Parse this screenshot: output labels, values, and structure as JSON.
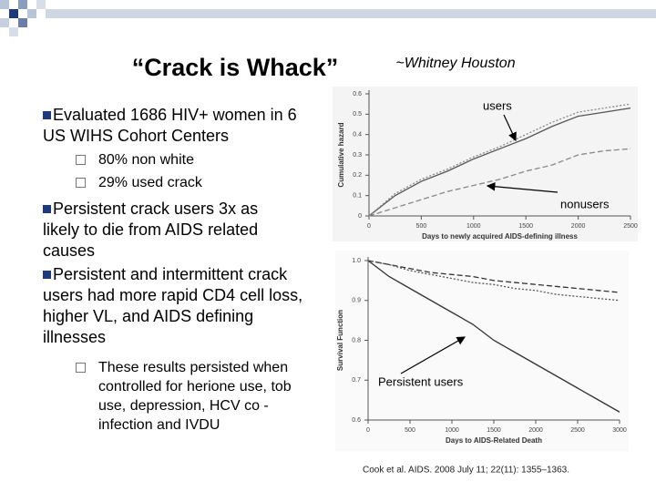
{
  "header": {
    "title": "“Crack is Whack”",
    "attribution": "~Whitney Houston"
  },
  "bullets": [
    {
      "text": "Evaluated 1686 HIV+ women in 6 US WIHS Cohort Centers",
      "subs": [
        "80% non white",
        "29% used crack"
      ]
    },
    {
      "text": "Persistent crack users 3x as likely to die from AIDS related causes",
      "subs": []
    },
    {
      "text": "Persistent and intermittent crack users had more rapid CD4 cell loss, higher VL, and AIDS defining illnesses",
      "subs": [
        "These results persisted when controlled for herione use, tob use, depression, HCV co -infection and IVDU"
      ]
    }
  ],
  "chart_data": [
    {
      "type": "line",
      "xlabel": "Days to newly acquired AIDS-defining illness",
      "ylabel": "Cumulative hazard",
      "x": [
        0,
        250,
        500,
        750,
        1000,
        1250,
        1500,
        1750,
        2000,
        2250,
        2500
      ],
      "series": [
        {
          "color": "#555555",
          "style": "solid",
          "values": [
            0,
            0.1,
            0.17,
            0.22,
            0.28,
            0.33,
            0.38,
            0.44,
            0.49,
            0.51,
            0.53
          ]
        },
        {
          "color": "#888888",
          "style": "dotted",
          "values": [
            0,
            0.11,
            0.18,
            0.23,
            0.29,
            0.34,
            0.4,
            0.46,
            0.51,
            0.53,
            0.55
          ]
        },
        {
          "color": "#888888",
          "style": "dashed",
          "values": [
            0,
            0.04,
            0.08,
            0.12,
            0.15,
            0.18,
            0.22,
            0.25,
            0.3,
            0.32,
            0.33
          ]
        }
      ],
      "xlim": [
        0,
        2500
      ],
      "xticks": [
        0,
        500,
        1000,
        1500,
        2000,
        2500
      ],
      "ylim": [
        0,
        0.6
      ],
      "yticks": [
        0,
        0.1,
        0.2,
        0.3,
        0.4,
        0.5,
        0.6
      ],
      "annotations": [
        "users",
        "nonusers"
      ]
    },
    {
      "type": "line",
      "xlabel": "Days to AIDS-Related Death",
      "ylabel": "Survival Function",
      "x": [
        0,
        250,
        500,
        750,
        1000,
        1250,
        1500,
        1750,
        2000,
        2250,
        2500,
        2750,
        3000
      ],
      "series": [
        {
          "color": "#333333",
          "style": "solid",
          "values": [
            1,
            0.96,
            0.93,
            0.9,
            0.87,
            0.84,
            0.8,
            0.77,
            0.74,
            0.71,
            0.68,
            0.65,
            0.62
          ]
        },
        {
          "color": "#333333",
          "style": "dashed",
          "values": [
            1,
            0.99,
            0.98,
            0.97,
            0.965,
            0.96,
            0.95,
            0.945,
            0.94,
            0.935,
            0.93,
            0.925,
            0.92
          ]
        },
        {
          "color": "#555555",
          "style": "dotted",
          "values": [
            1,
            0.99,
            0.975,
            0.965,
            0.955,
            0.945,
            0.94,
            0.93,
            0.925,
            0.915,
            0.91,
            0.905,
            0.9
          ]
        }
      ],
      "xlim": [
        0,
        3000
      ],
      "xticks": [
        0,
        500,
        1000,
        1500,
        2000,
        2500,
        3000
      ],
      "ylim": [
        0.6,
        1
      ],
      "yticks": [
        {
          "value": 0.6,
          "label": "0.6"
        },
        {
          "value": 0.7,
          "label": "0.7"
        },
        {
          "value": 0.8,
          "label": "0.8"
        },
        {
          "value": 0.9,
          "label": "0.9"
        },
        {
          "value": 1,
          "label": "1.0"
        }
      ],
      "annotations": [
        "Persistent users"
      ]
    }
  ],
  "citation": "Cook et al. AIDS. 2008 July 11; 22(11): 1355–1363."
}
